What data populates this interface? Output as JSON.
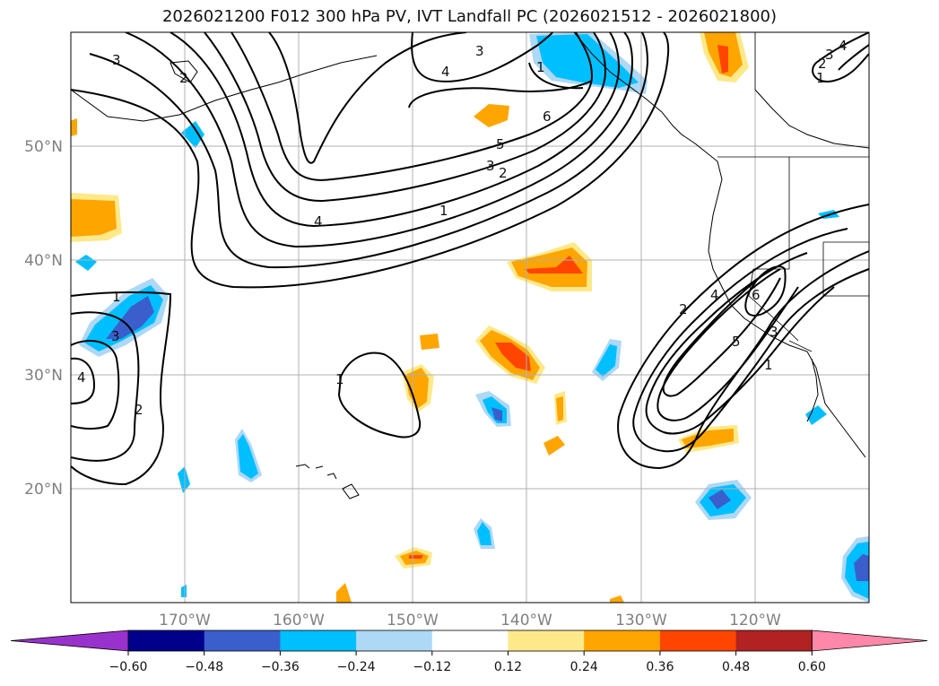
{
  "title": "2026021200 F012 300 hPa PV, IVT Landfall PC (2026021512 - 2026021800)",
  "axes": {
    "lon_ticks": [
      "170°W",
      "160°W",
      "150°W",
      "140°W",
      "130°W",
      "120°W"
    ],
    "lat_ticks": [
      "50°N",
      "40°N",
      "30°N",
      "20°N"
    ]
  },
  "colorbar": {
    "ticks": [
      "−0.60",
      "−0.48",
      "−0.36",
      "−0.24",
      "−0.12",
      "0.12",
      "0.24",
      "0.36",
      "0.48",
      "0.60"
    ],
    "colors": [
      "#9932cc",
      "#00008b",
      "#3a5fcd",
      "#00bfff",
      "#add8f6",
      "#ffffff",
      "#fde98a",
      "#ffa500",
      "#ff4500",
      "#b22222",
      "#ff88aa"
    ]
  },
  "contour_labels": [
    "1",
    "2",
    "3",
    "4",
    "5",
    "6"
  ],
  "chart_data": {
    "type": "map",
    "extent_lon": [
      -180,
      -110
    ],
    "extent_lat": [
      10,
      60
    ],
    "grid": true,
    "contour_levels": [
      1,
      2,
      3,
      4,
      5,
      6
    ],
    "shading_levels": [
      -0.6,
      -0.48,
      -0.36,
      -0.24,
      -0.12,
      0.12,
      0.24,
      0.36,
      0.48,
      0.6
    ]
  }
}
